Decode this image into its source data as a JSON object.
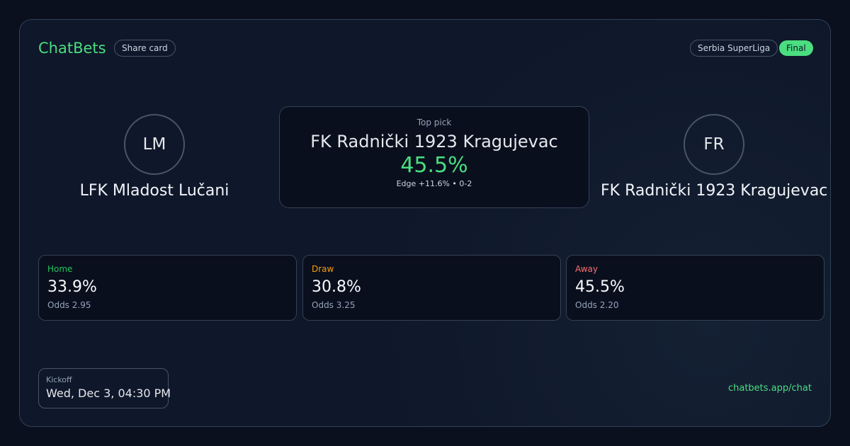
{
  "header": {
    "brand": "ChatBets",
    "share_label": "Share card",
    "league": "Serbia SuperLiga",
    "status": "Final"
  },
  "home": {
    "initials": "LM",
    "name": "LFK Mladost Lučani"
  },
  "away": {
    "initials": "FR",
    "name": "FK Radnički 1923 Kragujevac"
  },
  "top_pick": {
    "label": "Top pick",
    "team": "FK Radnički 1923 Kragujevac",
    "probability": "45.5%",
    "edge": "Edge +11.6% • 0-2"
  },
  "outcomes": [
    {
      "label": "Home",
      "probability": "33.9%",
      "odds": "Odds 2.95",
      "color": "#22c55e"
    },
    {
      "label": "Draw",
      "probability": "30.8%",
      "odds": "Odds 3.25",
      "color": "#f59e0b"
    },
    {
      "label": "Away",
      "probability": "45.5%",
      "odds": "Odds 2.20",
      "color": "#f87171"
    }
  ],
  "kickoff": {
    "label": "Kickoff",
    "value": "Wed, Dec 3, 04:30 PM"
  },
  "footer": {
    "url": "chatbets.app/chat"
  },
  "colors": {
    "accent": "#4ade80",
    "background": "#0f172a"
  }
}
